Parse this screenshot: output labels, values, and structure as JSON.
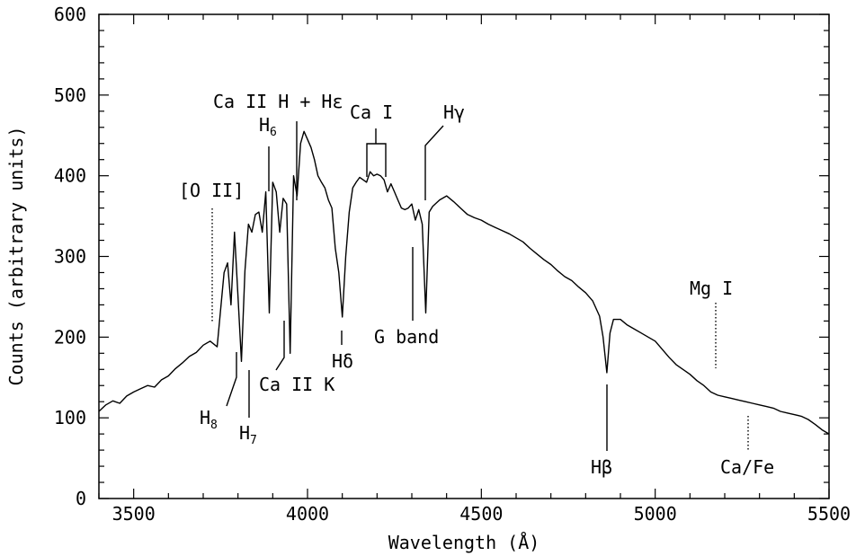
{
  "chart_data": {
    "type": "line",
    "title": "",
    "xlabel": "Wavelength (Å)",
    "ylabel": "Counts (arbitrary units)",
    "xlim": [
      3400,
      5500
    ],
    "ylim": [
      0,
      600
    ],
    "x_ticks": [
      3500,
      4000,
      4500,
      5000,
      5500
    ],
    "y_ticks": [
      0,
      100,
      200,
      300,
      400,
      500,
      600
    ],
    "grid": false,
    "legend": "none",
    "line_color": "#000000",
    "series": [
      {
        "x": [
          3400,
          3420,
          3440,
          3460,
          3480,
          3500,
          3520,
          3540,
          3560,
          3580,
          3600,
          3620,
          3640,
          3660,
          3680,
          3700,
          3720,
          3740,
          3760,
          3770,
          3780,
          3790,
          3800,
          3810,
          3820,
          3830,
          3840,
          3850,
          3860,
          3870,
          3880,
          3890,
          3900,
          3910,
          3920,
          3930,
          3940,
          3950,
          3960,
          3970,
          3980,
          3990,
          4000,
          4010,
          4020,
          4030,
          4040,
          4050,
          4060,
          4070,
          4080,
          4090,
          4100,
          4110,
          4120,
          4130,
          4140,
          4150,
          4160,
          4170,
          4180,
          4190,
          4200,
          4210,
          4220,
          4230,
          4240,
          4250,
          4260,
          4270,
          4280,
          4290,
          4300,
          4310,
          4320,
          4330,
          4340,
          4350,
          4360,
          4380,
          4400,
          4420,
          4440,
          4460,
          4480,
          4500,
          4520,
          4540,
          4560,
          4580,
          4600,
          4620,
          4640,
          4660,
          4680,
          4700,
          4720,
          4740,
          4760,
          4780,
          4800,
          4820,
          4840,
          4850,
          4861,
          4870,
          4880,
          4900,
          4920,
          4940,
          4960,
          4980,
          5000,
          5020,
          5040,
          5060,
          5080,
          5100,
          5120,
          5140,
          5160,
          5180,
          5200,
          5220,
          5240,
          5260,
          5280,
          5300,
          5320,
          5340,
          5360,
          5380,
          5400,
          5420,
          5440,
          5460,
          5480,
          5500
        ],
        "y": [
          108,
          116,
          121,
          118,
          127,
          132,
          136,
          140,
          138,
          147,
          152,
          161,
          168,
          176,
          181,
          190,
          195,
          188,
          280,
          292,
          240,
          330,
          250,
          170,
          282,
          340,
          330,
          352,
          355,
          330,
          380,
          230,
          392,
          380,
          330,
          372,
          365,
          180,
          400,
          375,
          440,
          455,
          445,
          435,
          420,
          400,
          392,
          385,
          370,
          360,
          310,
          280,
          225,
          300,
          355,
          385,
          392,
          398,
          395,
          392,
          405,
          400,
          402,
          400,
          395,
          380,
          390,
          380,
          370,
          360,
          358,
          360,
          365,
          345,
          358,
          340,
          230,
          355,
          362,
          370,
          375,
          368,
          360,
          352,
          348,
          345,
          340,
          336,
          332,
          328,
          323,
          318,
          310,
          303,
          296,
          290,
          282,
          275,
          270,
          262,
          255,
          245,
          226,
          200,
          156,
          205,
          222,
          222,
          215,
          210,
          205,
          200,
          195,
          185,
          175,
          166,
          160,
          154,
          146,
          140,
          132,
          128,
          126,
          124,
          122,
          120,
          118,
          116,
          114,
          112,
          108,
          106,
          104,
          102,
          98,
          92,
          85,
          80
        ]
      }
    ],
    "annotations": [
      {
        "text": "[O II]",
        "x": 3727,
        "style": "dotted"
      },
      {
        "text": "H",
        "sub": "8",
        "x": 3798,
        "style": "solid"
      },
      {
        "text": "H",
        "sub": "7",
        "x": 3835,
        "style": "solid"
      },
      {
        "text": "H",
        "sub": "6",
        "x": 3889,
        "style": "solid"
      },
      {
        "text": "Ca II K",
        "x": 3933,
        "style": "solid"
      },
      {
        "text": "Ca II H + Hε",
        "x": 3968,
        "style": "solid"
      },
      {
        "text": "Hδ",
        "x": 4101,
        "style": "solid"
      },
      {
        "text": "Ca I",
        "x": 4227,
        "style": "bracket"
      },
      {
        "text": "G band",
        "x": 4304,
        "style": "solid"
      },
      {
        "text": "Hγ",
        "x": 4340,
        "style": "solid"
      },
      {
        "text": "Hβ",
        "x": 4861,
        "style": "solid"
      },
      {
        "text": "Mg I",
        "x": 5175,
        "style": "dotted"
      },
      {
        "text": "Ca/Fe",
        "x": 5270,
        "style": "dotted"
      }
    ]
  }
}
